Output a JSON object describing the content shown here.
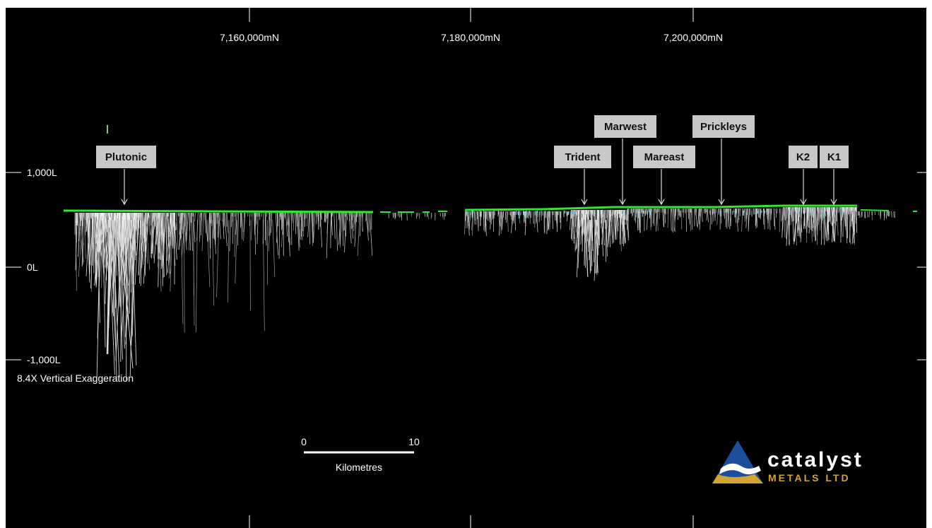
{
  "northings": [
    "7,160,000mN",
    "7,180,000mN",
    "7,200,000mN"
  ],
  "levels": [
    "1,000L",
    "0L",
    "-1,000L"
  ],
  "exaggeration": "8.4X Vertical Exaggeration",
  "scale_bar": {
    "start": "0",
    "end": "10",
    "unit": "Kilometres"
  },
  "deposits": [
    "Plutonic",
    "Trident",
    "Marwest",
    "Mareast",
    "Prickleys",
    "K2",
    "K1"
  ],
  "logo": {
    "word": "catalyst",
    "sub": "METALS LTD"
  },
  "colors": {
    "background": "#000000",
    "surface": "#2ee82e",
    "drill": "#d8d8d8",
    "callout": "#c8c8c8",
    "logo_gold": "#d4a433",
    "logo_blue": "#1b4f9c"
  }
}
